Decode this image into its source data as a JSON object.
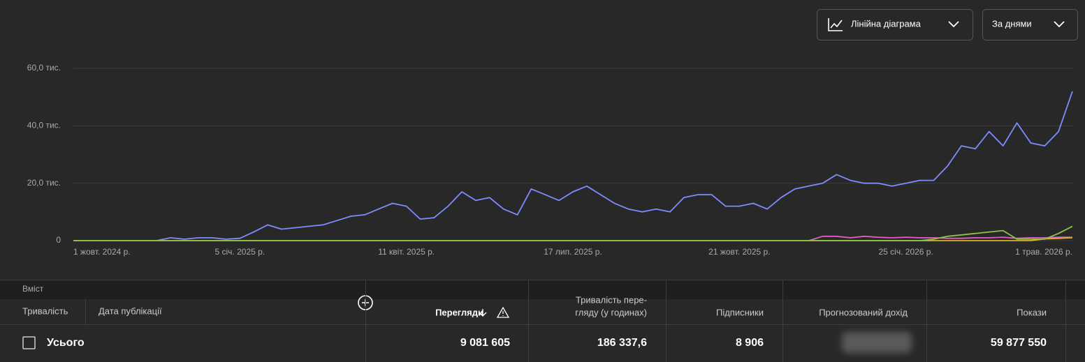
{
  "controls": {
    "chart_type": "Лінійна діаграма",
    "period": "За днями"
  },
  "chart_data": {
    "type": "line",
    "categories": [
      "1 жовт. 2024 р.",
      null,
      null,
      null,
      null,
      null,
      null,
      null,
      null,
      null,
      null,
      null,
      "5 січ. 2025 р.",
      null,
      null,
      null,
      null,
      null,
      null,
      null,
      null,
      null,
      null,
      null,
      "11 квіт. 2025 р.",
      null,
      null,
      null,
      null,
      null,
      null,
      null,
      null,
      null,
      null,
      null,
      "17 лип. 2025 р.",
      null,
      null,
      null,
      null,
      null,
      null,
      null,
      null,
      null,
      null,
      null,
      "21 жовт. 2025 р.",
      null,
      null,
      null,
      null,
      null,
      null,
      null,
      null,
      null,
      null,
      null,
      "25 січ. 2026 р.",
      null,
      null,
      null,
      null,
      null,
      null,
      null,
      null,
      null,
      null,
      null,
      "1 трав. 2026 р."
    ],
    "series": [
      {
        "color": "#7f8cff",
        "values": [
          0,
          0,
          0,
          0,
          0,
          0,
          0,
          1000,
          500,
          1000,
          1000,
          500,
          800,
          3000,
          5500,
          4000,
          4500,
          5000,
          5500,
          7000,
          8500,
          9000,
          11000,
          13000,
          12000,
          7500,
          8000,
          12000,
          17000,
          14000,
          15000,
          11000,
          9000,
          18000,
          16000,
          14000,
          17000,
          19000,
          16000,
          13000,
          11000,
          10000,
          11000,
          10000,
          15000,
          16000,
          16000,
          12000,
          12000,
          13000,
          11000,
          15000,
          18000,
          19000,
          20000,
          23000,
          21000,
          20000,
          20000,
          19000,
          20000,
          21000,
          21000,
          26000,
          33000,
          32000,
          38000,
          33000,
          41000,
          34000,
          33000,
          38000,
          52000
        ]
      },
      {
        "color": "#e05fc4",
        "values": [
          0,
          0,
          0,
          0,
          0,
          0,
          0,
          0,
          0,
          0,
          0,
          0,
          0,
          0,
          0,
          0,
          0,
          0,
          0,
          0,
          0,
          0,
          0,
          0,
          0,
          0,
          0,
          0,
          0,
          0,
          0,
          0,
          0,
          0,
          0,
          0,
          0,
          0,
          0,
          0,
          0,
          0,
          0,
          0,
          0,
          0,
          0,
          0,
          0,
          0,
          0,
          0,
          0,
          0,
          1500,
          1500,
          1000,
          1500,
          1200,
          1000,
          1200,
          1000,
          1000,
          800,
          800,
          1000,
          1000,
          1200,
          800,
          1000,
          1000,
          1200,
          1200
        ]
      },
      {
        "color": "#e0b020",
        "values": [
          0,
          0,
          0,
          0,
          0,
          0,
          0,
          0,
          0,
          0,
          0,
          0,
          0,
          0,
          0,
          0,
          0,
          0,
          0,
          0,
          0,
          0,
          0,
          0,
          0,
          0,
          0,
          0,
          0,
          0,
          0,
          0,
          0,
          0,
          0,
          0,
          0,
          0,
          0,
          0,
          0,
          0,
          0,
          0,
          0,
          0,
          0,
          0,
          0,
          0,
          0,
          0,
          0,
          0,
          0,
          0,
          0,
          0,
          0,
          0,
          0,
          0,
          0,
          0,
          0,
          0,
          0,
          0,
          0,
          0,
          600,
          800,
          1000
        ]
      },
      {
        "color": "#8bc34a",
        "values": [
          0,
          0,
          0,
          0,
          0,
          0,
          0,
          0,
          0,
          0,
          0,
          0,
          0,
          0,
          0,
          0,
          0,
          0,
          0,
          0,
          0,
          0,
          0,
          0,
          0,
          0,
          0,
          0,
          0,
          0,
          0,
          0,
          0,
          0,
          0,
          0,
          0,
          0,
          0,
          0,
          0,
          0,
          0,
          0,
          0,
          0,
          0,
          0,
          0,
          0,
          0,
          0,
          0,
          0,
          0,
          0,
          0,
          0,
          0,
          0,
          0,
          0,
          500,
          1500,
          2000,
          2500,
          3000,
          3500,
          500,
          500,
          500,
          2500,
          5000
        ]
      }
    ],
    "ylim": [
      0,
      60000
    ],
    "yticks": [
      0,
      {
        "value": 20000,
        "label": "20,0 тис."
      },
      {
        "value": 40000,
        "label": "40,0 тис."
      },
      {
        "value": 60000,
        "label": "60,0 тис."
      }
    ],
    "grid": true
  },
  "table": {
    "group": "Вміст",
    "left_headers": [
      "Тривалість",
      "Дата публікації"
    ],
    "headers": [
      [
        "Перегляди"
      ],
      [
        "Тривалість пере-",
        "гляду (у годинах)"
      ],
      [
        "Підписники"
      ],
      [
        "Прогнозований дохід"
      ],
      [
        "Покази"
      ]
    ],
    "total_row": {
      "label": "Усього",
      "cells": [
        "9 081 605",
        "186 337,6",
        "8 906",
        null,
        "59 877 550"
      ]
    }
  }
}
